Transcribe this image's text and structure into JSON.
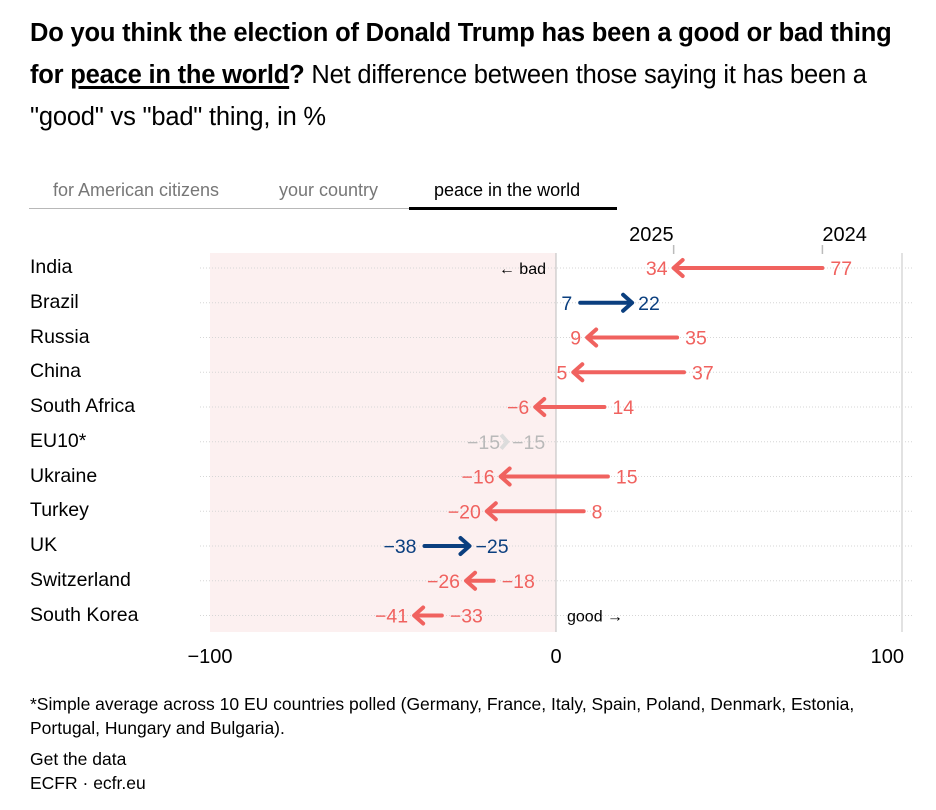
{
  "title": {
    "bold_prefix": "Do you think the election of Donald Trump has been a good or bad thing for ",
    "highlight": "peace in the world",
    "bold_suffix": "?",
    "subtitle": " Net difference between those saying it has been a \"good\" vs \"bad\" thing, in %"
  },
  "tabs": [
    {
      "label": "for American citizens",
      "active": false
    },
    {
      "label": "your country",
      "active": false
    },
    {
      "label": "peace in the world",
      "active": true
    }
  ],
  "colors": {
    "decline": "#f0625f",
    "improve": "#0b3f7f",
    "unchanged": "#b9b9b9",
    "negative_zone": "#fcf0f0",
    "gridline": "#d6d6d6",
    "zero_line": "#bdbdbd"
  },
  "chart_data": {
    "type": "arrow-dot",
    "title": "Do you think the election of Donald Trump has been a good or bad thing for peace in the world?",
    "subtitle": "Net difference between those saying it has been a \"good\" vs \"bad\" thing, in %",
    "xlim": [
      -100,
      100
    ],
    "xticks": [
      "−100",
      "0",
      "100"
    ],
    "xtick_values": [
      -100,
      0,
      100
    ],
    "series_labels": {
      "from": "2024",
      "to": "2025"
    },
    "direction_labels": {
      "bad": "← bad",
      "good": "good →"
    },
    "negative_zone": [
      -100,
      0
    ],
    "grid": "dotted horizontal",
    "rows": [
      {
        "country": "India",
        "2024": 77,
        "2025": 34
      },
      {
        "country": "Brazil",
        "2024": 7,
        "2025": 22
      },
      {
        "country": "Russia",
        "2024": 35,
        "2025": 9
      },
      {
        "country": "China",
        "2024": 37,
        "2025": 5
      },
      {
        "country": "South Africa",
        "2024": 14,
        "2025": -6
      },
      {
        "country": "EU10*",
        "2024": -15,
        "2025": -15
      },
      {
        "country": "Ukraine",
        "2024": 15,
        "2025": -16
      },
      {
        "country": "Turkey",
        "2024": 8,
        "2025": -20
      },
      {
        "country": "UK",
        "2024": -38,
        "2025": -25
      },
      {
        "country": "Switzerland",
        "2024": -18,
        "2025": -26
      },
      {
        "country": "South Korea",
        "2024": -33,
        "2025": -41
      }
    ]
  },
  "footnote": "*Simple average across 10 EU countries polled (Germany, France, Italy, Spain, Poland, Denmark, Estonia, Portugal, Hungary and Bulgaria).",
  "get_data_label": "Get the data",
  "source": "ECFR · ecfr.eu"
}
